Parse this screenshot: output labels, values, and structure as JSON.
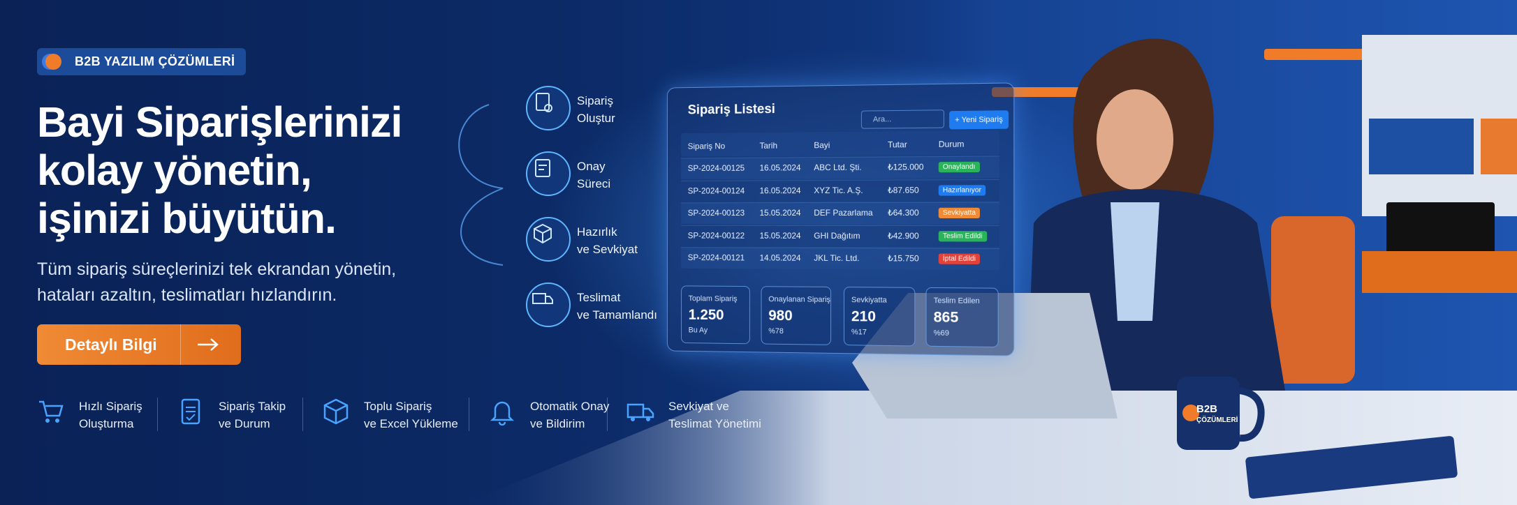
{
  "badge": "B2B YAZILIM ÇÖZÜMLERİ",
  "headline": [
    "Bayi Siparişlerinizi",
    "kolay yönetin,",
    "işinizi büyütün."
  ],
  "subtitle": [
    "Tüm sipariş süreçlerinizi tek ekrandan yönetin,",
    "hataları azaltın, teslimatları hızlandırın."
  ],
  "cta": "Detaylı Bilgi",
  "features": [
    [
      "Hızlı Sipariş",
      "Oluşturma"
    ],
    [
      "Sipariş Takip",
      "ve Durum"
    ],
    [
      "Toplu Sipariş",
      "ve Excel Yükleme"
    ],
    [
      "Otomatik Onay",
      "ve Bildirim"
    ],
    [
      "Sevkiyat ve",
      "Teslimat Yönetimi"
    ]
  ],
  "steps": [
    [
      "Sipariş",
      "Oluştur"
    ],
    [
      "Onay",
      "Süreci"
    ],
    [
      "Hazırlık",
      "ve Sevkiyat"
    ],
    [
      "Teslimat",
      "ve Tamamlandı"
    ]
  ],
  "panel": {
    "title": "Sipariş Listesi",
    "search": "Ara...",
    "button": "+ Yeni Sipariş",
    "columns": [
      "Sipariş No",
      "Tarih",
      "Bayi",
      "Tutar",
      "Durum"
    ],
    "rows": [
      [
        "SP-2024-00125",
        "16.05.2024",
        "ABC Ltd. Şti.",
        "₺125.000",
        "Onaylandı"
      ],
      [
        "SP-2024-00124",
        "16.05.2024",
        "XYZ Tic. A.Ş.",
        "₺87.650",
        "Hazırlanıyor"
      ],
      [
        "SP-2024-00123",
        "15.05.2024",
        "DEF Pazarlama",
        "₺64.300",
        "Sevkiyatta"
      ],
      [
        "SP-2024-00122",
        "15.05.2024",
        "GHI Dağıtım",
        "₺42.900",
        "Teslim Edildi"
      ],
      [
        "SP-2024-00121",
        "14.05.2024",
        "JKL Tic. Ltd.",
        "₺15.750",
        "İptal Edildi"
      ]
    ],
    "stats": [
      [
        "Toplam Sipariş",
        "1.250",
        "Bu Ay"
      ],
      [
        "Onaylanan Sipariş",
        "980",
        "%78"
      ],
      [
        "Sevkiyatta",
        "210",
        "%17"
      ],
      [
        "Teslim Edilen",
        "865",
        "%69"
      ]
    ]
  },
  "mug": [
    "B2B",
    "ÇÖZÜMLERİ"
  ]
}
